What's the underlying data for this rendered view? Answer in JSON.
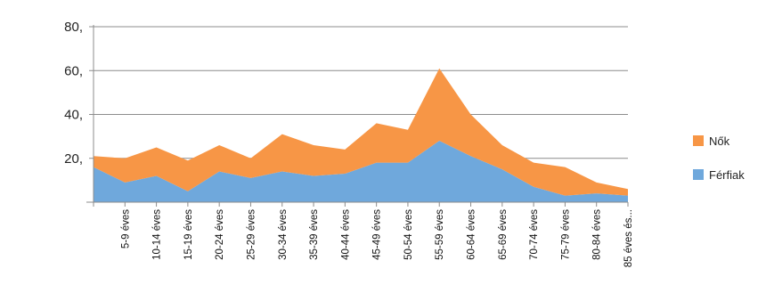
{
  "chart_data": {
    "type": "area",
    "title": "",
    "xlabel": "",
    "ylabel": "",
    "categories": [
      "",
      "5-9 éves",
      "10-14 éves",
      "15-19 éves",
      "20-24 éves",
      "25-29 éves",
      "30-34 éves",
      "35-39 éves",
      "40-44 éves",
      "45-49 éves",
      "50-54 éves",
      "55-59 éves",
      "60-64 éves",
      "65-69 éves",
      "70-74 éves",
      "75-79 éves",
      "80-84 éves",
      "85 éves és..."
    ],
    "series": [
      {
        "name": "Férfiak",
        "color": "#6fa8dc",
        "values": [
          16,
          9,
          12,
          5,
          14,
          11,
          14,
          12,
          13,
          18,
          18,
          28,
          21,
          15,
          7,
          3,
          4,
          3
        ]
      },
      {
        "name": "Nők",
        "color": "#f79646",
        "values": [
          5,
          11,
          13,
          14,
          12,
          9,
          17,
          14,
          11,
          18,
          15,
          33,
          19,
          11,
          11,
          13,
          5,
          3
        ]
      }
    ],
    "stacked": true,
    "ylim": [
      0,
      80
    ],
    "yticks": [
      "",
      "20,",
      "40,",
      "60,",
      "80,"
    ],
    "grid": true,
    "legend_position": "right"
  }
}
